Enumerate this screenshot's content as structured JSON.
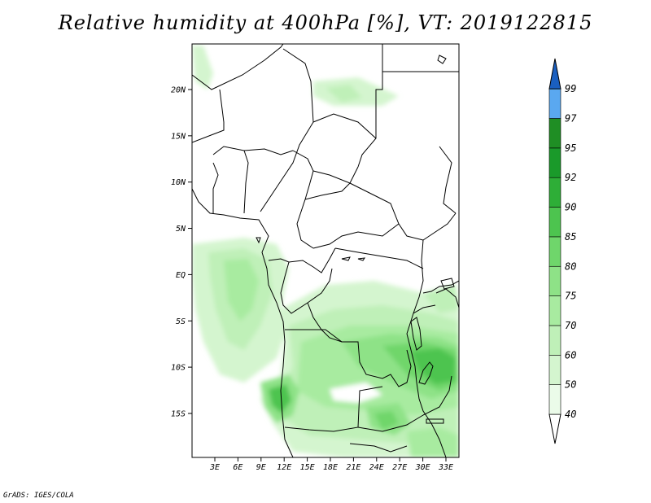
{
  "title": "Relative humidity at 400hPa [%], VT: 2019122815",
  "credit": "GrADS: IGES/COLA",
  "map": {
    "lat_labels": [
      "20N",
      "15N",
      "10N",
      "5N",
      "EQ",
      "5S",
      "10S",
      "15S"
    ],
    "lon_labels": [
      "3E",
      "6E",
      "9E",
      "12E",
      "15E",
      "18E",
      "21E",
      "24E",
      "27E",
      "30E",
      "33E"
    ]
  },
  "colorbar": {
    "levels": [
      "40",
      "50",
      "60",
      "70",
      "75",
      "80",
      "85",
      "90",
      "92",
      "95",
      "97",
      "99"
    ],
    "colors": [
      "#ffffff",
      "#ebfbe9",
      "#d4f5cf",
      "#bff0b8",
      "#a8eba0",
      "#8ee287",
      "#6fd66b",
      "#4dc44f",
      "#2eae37",
      "#1a9a2a",
      "#1f8e24",
      "#5aa8f0",
      "#2b78d8",
      "#1a5fc0"
    ]
  }
}
